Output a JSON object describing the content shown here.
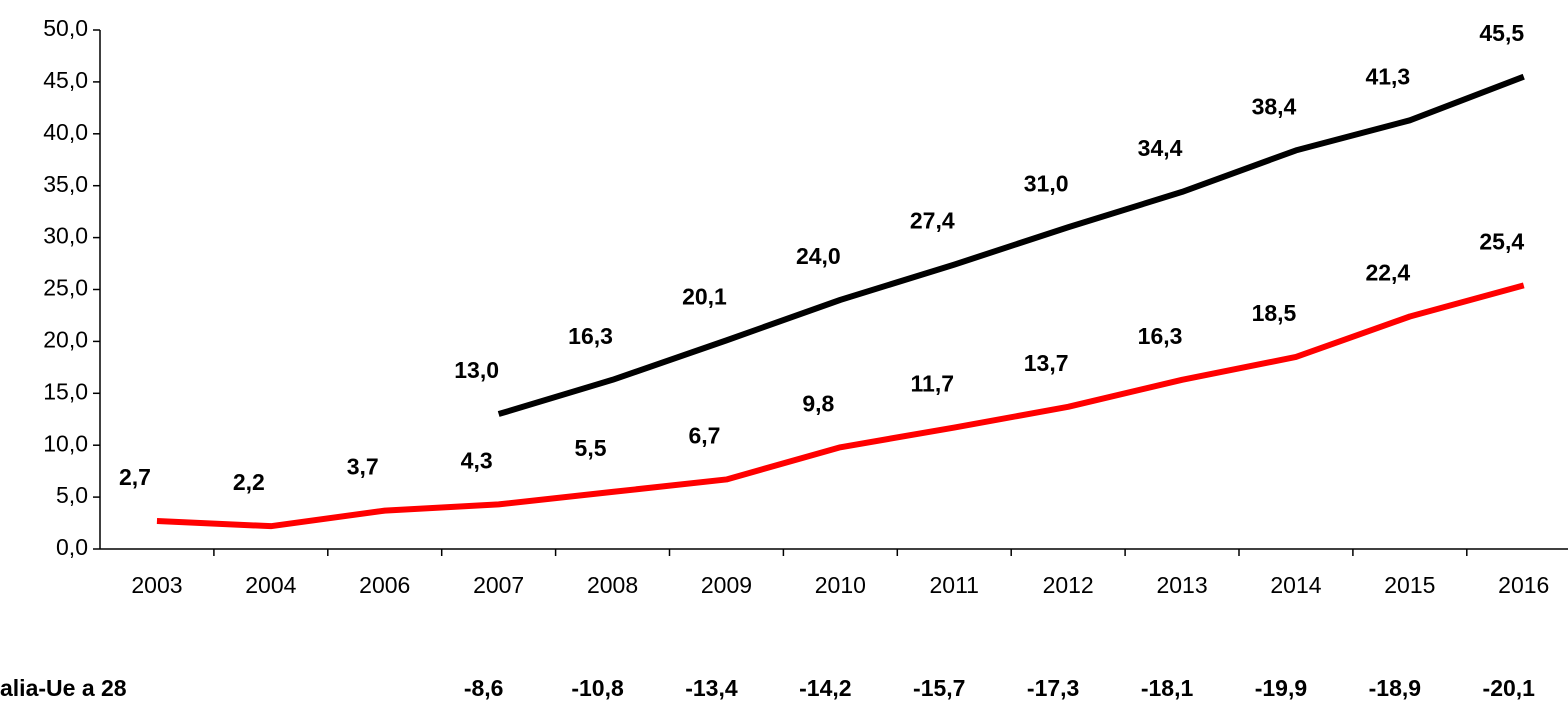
{
  "chart_data": {
    "type": "line",
    "categories": [
      "2003",
      "2004",
      "2006",
      "2007",
      "2008",
      "2009",
      "2010",
      "2011",
      "2012",
      "2013",
      "2014",
      "2015",
      "2016"
    ],
    "series": [
      {
        "color": "#000000",
        "values": [
          null,
          null,
          null,
          13.0,
          16.3,
          20.1,
          24.0,
          27.4,
          31.0,
          34.4,
          38.4,
          41.3,
          45.5
        ],
        "value_labels": [
          null,
          null,
          null,
          "13,0",
          "16,3",
          "20,1",
          "24,0",
          "27,4",
          "31,0",
          "34,4",
          "38,4",
          "41,3",
          "45,5"
        ]
      },
      {
        "color": "#ff0000",
        "values": [
          2.7,
          2.2,
          3.7,
          4.3,
          5.5,
          6.7,
          9.8,
          11.7,
          13.7,
          16.3,
          18.5,
          22.4,
          25.4
        ],
        "value_labels": [
          "2,7",
          "2,2",
          "3,7",
          "4,3",
          "5,5",
          "6,7",
          "9,8",
          "11,7",
          "13,7",
          "16,3",
          "18,5",
          "22,4",
          "25,4"
        ]
      }
    ],
    "ylim": [
      0,
      50
    ],
    "yticks": [
      {
        "value": 0,
        "label": "0,0"
      },
      {
        "value": 5,
        "label": "5,0"
      },
      {
        "value": 10,
        "label": "10,0"
      },
      {
        "value": 15,
        "label": "15,0"
      },
      {
        "value": 20,
        "label": "20,0"
      },
      {
        "value": 25,
        "label": "25,0"
      },
      {
        "value": 30,
        "label": "30,0"
      },
      {
        "value": 35,
        "label": "35,0"
      },
      {
        "value": 40,
        "label": "40,0"
      },
      {
        "value": 45,
        "label": "45,0"
      },
      {
        "value": 50,
        "label": "50,0"
      }
    ],
    "difference": {
      "label": "alia-Ue a 28",
      "values": [
        null,
        null,
        null,
        -8.6,
        -10.8,
        -13.4,
        -14.2,
        -15.7,
        -17.3,
        -18.1,
        -19.9,
        -18.9,
        -20.1
      ],
      "value_labels": [
        null,
        null,
        null,
        "-8,6",
        "-10,8",
        "-13,4",
        "-14,2",
        "-15,7",
        "-17,3",
        "-18,1",
        "-19,9",
        "-18,9",
        "-20,1"
      ]
    }
  }
}
